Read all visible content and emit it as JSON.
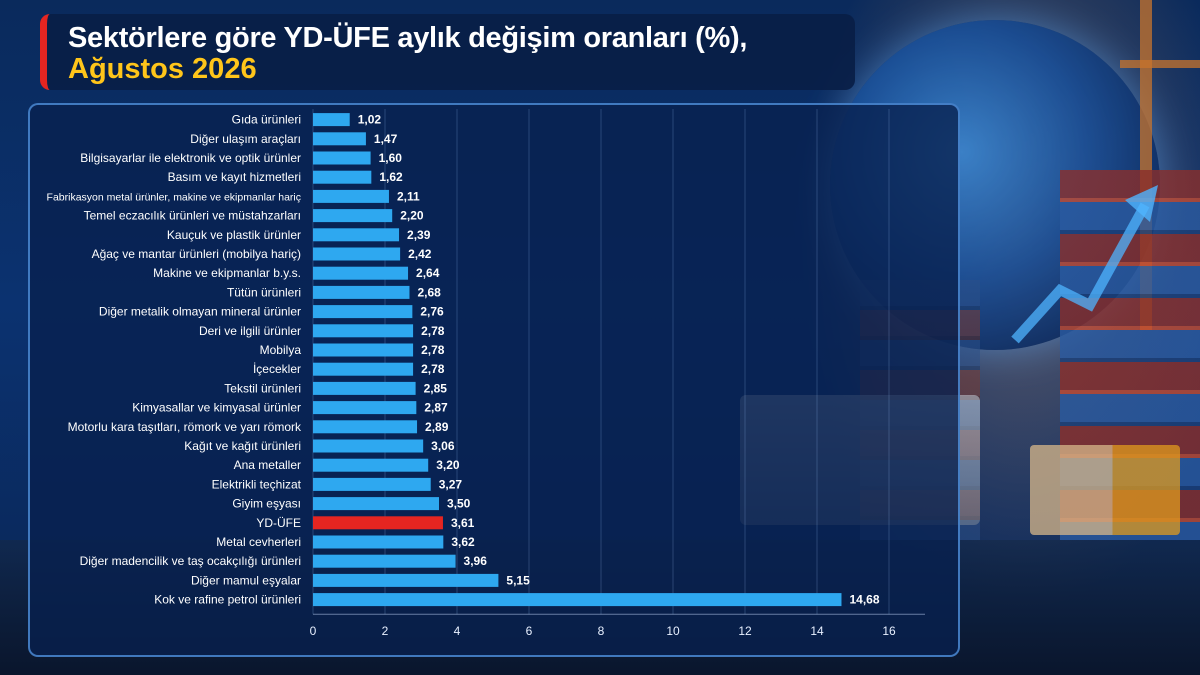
{
  "title": {
    "line1": "Sektörlere göre YD-ÜFE aylık değişim oranları (%),",
    "line2": "Ağustos 2026"
  },
  "colors": {
    "bar": "#2ea8f0",
    "highlight": "#e52521",
    "title_accent": "#ffc51a"
  },
  "chart_data": {
    "type": "bar",
    "orientation": "horizontal",
    "categories": [
      "Gıda ürünleri",
      "Diğer ulaşım araçları",
      "Bilgisayarlar ile elektronik ve optik ürünler",
      "Basım ve kayıt hizmetleri",
      "Fabrikasyon metal ürünler, makine ve ekipmanlar hariç",
      "Temel eczacılık ürünleri ve müstahzarları",
      "Kauçuk ve plastik ürünler",
      "Ağaç ve mantar ürünleri (mobilya hariç)",
      "Makine ve ekipmanlar b.y.s.",
      "Tütün ürünleri",
      "Diğer metalik olmayan mineral ürünler",
      "Deri ve ilgili ürünler",
      "Mobilya",
      "İçecekler",
      "Tekstil ürünleri",
      "Kimyasallar ve kimyasal ürünler",
      "Motorlu kara taşıtları, römork ve yarı römork",
      "Kağıt ve kağıt ürünleri",
      "Ana metaller",
      "Elektrikli teçhizat",
      "Giyim eşyası",
      "YD-ÜFE",
      "Metal cevherleri",
      "Diğer madencilik ve taş ocakçılığı ürünleri",
      "Diğer mamul eşyalar",
      "Kok ve rafine petrol ürünleri"
    ],
    "values": [
      1.02,
      1.47,
      1.6,
      1.62,
      2.11,
      2.2,
      2.39,
      2.42,
      2.64,
      2.68,
      2.76,
      2.78,
      2.78,
      2.78,
      2.85,
      2.87,
      2.89,
      3.06,
      3.2,
      3.27,
      3.5,
      3.61,
      3.62,
      3.96,
      5.15,
      14.68
    ],
    "value_labels": [
      "1,02",
      "1,47",
      "1,60",
      "1,62",
      "2,11",
      "2,20",
      "2,39",
      "2,42",
      "2,64",
      "2,68",
      "2,76",
      "2,78",
      "2,78",
      "2,78",
      "2,85",
      "2,87",
      "2,89",
      "3,06",
      "3,20",
      "3,27",
      "3,50",
      "3,61",
      "3,62",
      "3,96",
      "5,15",
      "14,68"
    ],
    "highlight_category": "YD-ÜFE",
    "x_ticks": [
      "0",
      "2",
      "4",
      "6",
      "8",
      "10",
      "12",
      "14",
      "16"
    ],
    "xlim": [
      0,
      17
    ],
    "grid": true
  }
}
